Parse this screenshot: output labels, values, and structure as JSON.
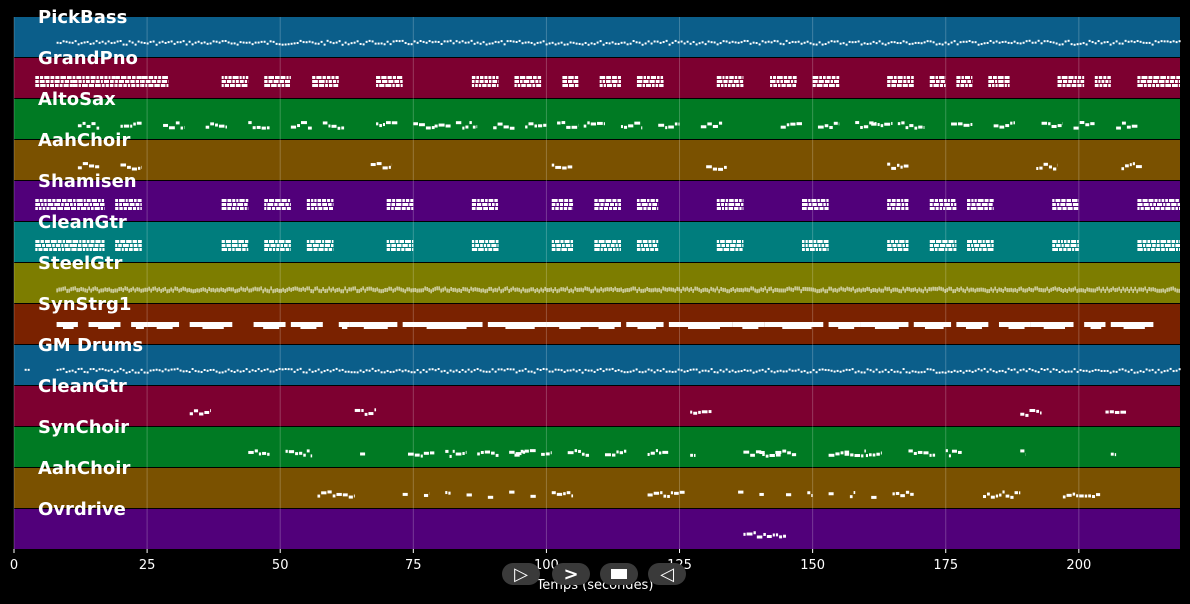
{
  "chart_data": {
    "type": "piano-roll",
    "xlabel": "Temps (secondes)",
    "xlim": [
      0,
      219
    ],
    "xticks": [
      0,
      25,
      50,
      75,
      100,
      125,
      150,
      175,
      200
    ],
    "grid": true,
    "tracks": [
      {
        "name": "PickBass",
        "color": "#0b5e8a",
        "segments": [
          [
            8,
            219
          ]
        ],
        "style": "dense-thin"
      },
      {
        "name": "GrandPno",
        "color": "#7d0030",
        "segments": [
          [
            4,
            11
          ],
          [
            11,
            19
          ],
          [
            19,
            24
          ],
          [
            24,
            29
          ],
          [
            39,
            44
          ],
          [
            47,
            52
          ],
          [
            56,
            61
          ],
          [
            68,
            73
          ],
          [
            86,
            91
          ],
          [
            94,
            99
          ],
          [
            103,
            106
          ],
          [
            110,
            114
          ],
          [
            117,
            122
          ],
          [
            132,
            137
          ],
          [
            142,
            147
          ],
          [
            150,
            155
          ],
          [
            164,
            169
          ],
          [
            172,
            175
          ],
          [
            177,
            180
          ],
          [
            183,
            187
          ],
          [
            196,
            201
          ],
          [
            203,
            206
          ],
          [
            211,
            219
          ]
        ],
        "style": "chords"
      },
      {
        "name": "AltoSax",
        "color": "#007a23",
        "segments": [
          [
            12,
            16
          ],
          [
            20,
            24
          ],
          [
            28,
            32
          ],
          [
            36,
            40
          ],
          [
            44,
            48
          ],
          [
            52,
            56
          ],
          [
            58,
            62
          ],
          [
            68,
            72
          ],
          [
            75,
            79
          ],
          [
            79,
            82
          ],
          [
            83,
            87
          ],
          [
            90,
            94
          ],
          [
            96,
            100
          ],
          [
            102,
            106
          ],
          [
            107,
            111
          ],
          [
            114,
            118
          ],
          [
            121,
            125
          ],
          [
            129,
            133
          ],
          [
            144,
            148
          ],
          [
            151,
            155
          ],
          [
            158,
            162
          ],
          [
            161,
            165
          ],
          [
            166,
            171
          ],
          [
            176,
            180
          ],
          [
            184,
            188
          ],
          [
            193,
            197
          ],
          [
            199,
            203
          ],
          [
            207,
            211
          ]
        ],
        "style": "notes"
      },
      {
        "name": "AahChoir",
        "color": "#7a5100",
        "segments": [
          [
            12,
            16
          ],
          [
            20,
            24
          ],
          [
            67,
            71
          ],
          [
            101,
            105
          ],
          [
            130,
            134
          ],
          [
            164,
            168
          ],
          [
            192,
            196
          ],
          [
            208,
            212
          ]
        ],
        "style": "notes"
      },
      {
        "name": "Shamisen",
        "color": "#51007a",
        "segments": [
          [
            4,
            12
          ],
          [
            12,
            17
          ],
          [
            19,
            24
          ],
          [
            39,
            44
          ],
          [
            47,
            52
          ],
          [
            55,
            60
          ],
          [
            70,
            75
          ],
          [
            86,
            91
          ],
          [
            101,
            105
          ],
          [
            109,
            114
          ],
          [
            117,
            121
          ],
          [
            132,
            137
          ],
          [
            148,
            153
          ],
          [
            164,
            168
          ],
          [
            172,
            177
          ],
          [
            179,
            184
          ],
          [
            195,
            200
          ],
          [
            211,
            219
          ]
        ],
        "style": "chords"
      },
      {
        "name": "CleanGtr",
        "color": "#007d7d",
        "segments": [
          [
            4,
            11
          ],
          [
            11,
            17
          ],
          [
            19,
            24
          ],
          [
            39,
            44
          ],
          [
            47,
            52
          ],
          [
            55,
            60
          ],
          [
            70,
            75
          ],
          [
            86,
            91
          ],
          [
            101,
            105
          ],
          [
            109,
            114
          ],
          [
            117,
            121
          ],
          [
            132,
            137
          ],
          [
            148,
            153
          ],
          [
            164,
            168
          ],
          [
            172,
            177
          ],
          [
            179,
            184
          ],
          [
            195,
            200
          ],
          [
            211,
            219
          ]
        ],
        "style": "chords"
      },
      {
        "name": "SteelGtr",
        "color": "#7d7d00",
        "segments": [
          [
            8,
            219
          ]
        ],
        "style": "dense-thick"
      },
      {
        "name": "SynStrg1",
        "color": "#7a2200",
        "segments": [
          [
            8,
            12
          ],
          [
            14,
            20
          ],
          [
            22,
            25
          ],
          [
            25,
            31
          ],
          [
            33,
            41
          ],
          [
            45,
            51
          ],
          [
            52,
            58
          ],
          [
            61,
            63
          ],
          [
            63,
            72
          ],
          [
            73,
            88
          ],
          [
            89,
            100
          ],
          [
            100,
            108
          ],
          [
            108,
            114
          ],
          [
            115,
            122
          ],
          [
            123,
            135
          ],
          [
            135,
            141
          ],
          [
            141,
            152
          ],
          [
            153,
            159
          ],
          [
            159,
            168
          ],
          [
            169,
            176
          ],
          [
            177,
            183
          ],
          [
            185,
            191
          ],
          [
            191,
            199
          ],
          [
            201,
            205
          ],
          [
            206,
            214
          ]
        ],
        "style": "blocks"
      },
      {
        "name": "GM Drums",
        "color": "#0b5e8a",
        "segments": [
          [
            2,
            3
          ],
          [
            8,
            219
          ]
        ],
        "style": "dense-thin"
      },
      {
        "name": "CleanGtr",
        "color": "#7d0030",
        "segments": [
          [
            33,
            37
          ],
          [
            64,
            68
          ],
          [
            127,
            131
          ],
          [
            189,
            193
          ],
          [
            205,
            209
          ]
        ],
        "style": "notes"
      },
      {
        "name": "SynChoir",
        "color": "#007a23",
        "segments": [
          [
            44,
            48
          ],
          [
            51,
            56
          ],
          [
            65,
            66
          ],
          [
            74,
            79
          ],
          [
            81,
            85
          ],
          [
            87,
            91
          ],
          [
            93,
            96
          ],
          [
            94,
            98
          ],
          [
            99,
            101
          ],
          [
            104,
            108
          ],
          [
            111,
            115
          ],
          [
            119,
            123
          ],
          [
            127,
            128
          ],
          [
            137,
            141
          ],
          [
            140,
            144
          ],
          [
            143,
            147
          ],
          [
            153,
            157
          ],
          [
            156,
            160
          ],
          [
            160,
            163
          ],
          [
            168,
            173
          ],
          [
            175,
            178
          ],
          [
            189,
            190
          ],
          [
            206,
            207
          ]
        ],
        "style": "notes"
      },
      {
        "name": "AahChoir",
        "color": "#7a5100",
        "segments": [
          [
            57,
            64
          ],
          [
            73,
            74
          ],
          [
            77,
            78
          ],
          [
            81,
            82
          ],
          [
            85,
            86
          ],
          [
            89,
            90
          ],
          [
            93,
            94
          ],
          [
            97,
            98
          ],
          [
            101,
            105
          ],
          [
            119,
            126
          ],
          [
            136,
            137
          ],
          [
            140,
            141
          ],
          [
            145,
            146
          ],
          [
            149,
            150
          ],
          [
            153,
            154
          ],
          [
            157,
            158
          ],
          [
            161,
            162
          ],
          [
            165,
            169
          ],
          [
            182,
            189
          ],
          [
            197,
            204
          ]
        ],
        "style": "notes"
      },
      {
        "name": "Ovrdrive",
        "color": "#51007a",
        "segments": [
          [
            137,
            145
          ]
        ],
        "style": "notes"
      }
    ],
    "transport": {
      "play_icon": "play-outline-icon",
      "forward_icon": "forward-icon",
      "stop_icon": "stop-icon",
      "back_icon": "back-outline-icon"
    }
  }
}
